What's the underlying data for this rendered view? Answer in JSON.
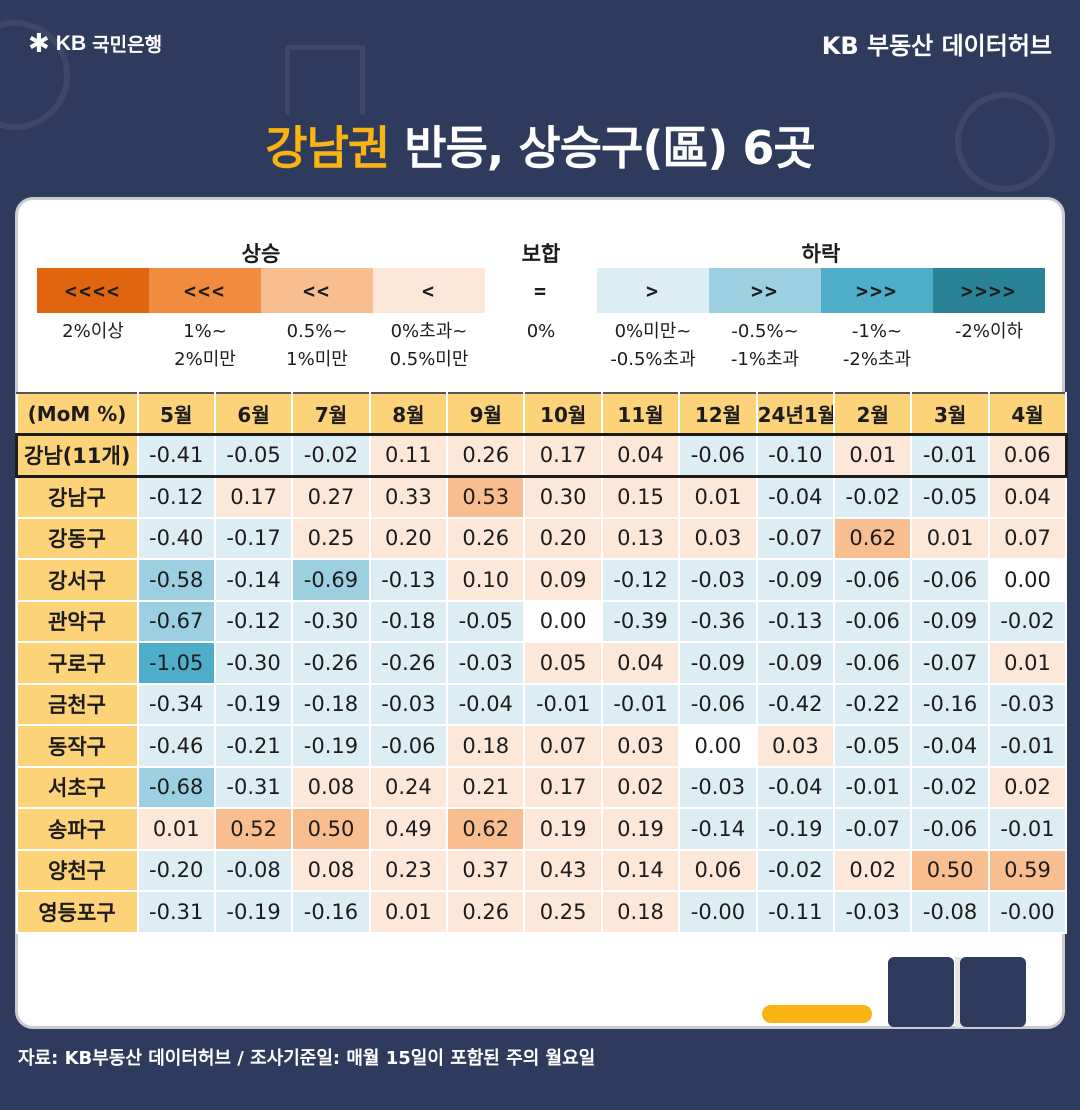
{
  "header": {
    "logo_star": "✱",
    "logo_kb": "KB",
    "logo_text": "국민은행",
    "brand": "KB 부동산 데이터허브"
  },
  "title": {
    "highlight": "강남권",
    "rest": " 반등, 상승구(區) 6곳"
  },
  "legend": {
    "groups": {
      "up": "상승",
      "flat": "보합",
      "down": "하락"
    },
    "items": [
      {
        "symbol": "<<<<",
        "label": [
          "2%이상"
        ],
        "color": "#e1650e"
      },
      {
        "symbol": "<<<",
        "label": [
          "1%~",
          "2%미만"
        ],
        "color": "#f18c3f"
      },
      {
        "symbol": "<<",
        "label": [
          "0.5%~",
          "1%미만"
        ],
        "color": "#f9be8f"
      },
      {
        "symbol": "<",
        "label": [
          "0%초과~",
          "0.5%미만"
        ],
        "color": "#fde7d8"
      },
      {
        "symbol": "=",
        "label": [
          "0%"
        ],
        "color": "#ffffff"
      },
      {
        "symbol": ">",
        "label": [
          "0%미만~",
          "-0.5%초과"
        ],
        "color": "#dcedf3"
      },
      {
        "symbol": ">>",
        "label": [
          "-0.5%~",
          "-1%초과"
        ],
        "color": "#9ccfe0"
      },
      {
        "symbol": ">>>",
        "label": [
          "-1%~",
          "-2%초과"
        ],
        "color": "#4eadc9"
      },
      {
        "symbol": ">>>>",
        "label": [
          "-2%이하"
        ],
        "color": "#2a8296"
      }
    ]
  },
  "table": {
    "corner": "(MoM %)",
    "months": [
      "5월",
      "6월",
      "7월",
      "8월",
      "9월",
      "10월",
      "11월",
      "12월",
      "24년1월",
      "2월",
      "3월",
      "4월"
    ],
    "summary": {
      "name": "강남(11개)",
      "values": [
        "-0.41",
        "-0.05",
        "-0.02",
        "0.11",
        "0.26",
        "0.17",
        "0.04",
        "-0.06",
        "-0.10",
        "0.01",
        "-0.01",
        "0.06"
      ]
    },
    "rows": [
      {
        "name": "강남구",
        "values": [
          "-0.12",
          "0.17",
          "0.27",
          "0.33",
          "0.53",
          "0.30",
          "0.15",
          "0.01",
          "-0.04",
          "-0.02",
          "-0.05",
          "0.04"
        ]
      },
      {
        "name": "강동구",
        "values": [
          "-0.40",
          "-0.17",
          "0.25",
          "0.20",
          "0.26",
          "0.20",
          "0.13",
          "0.03",
          "-0.07",
          "0.62",
          "0.01",
          "0.07"
        ]
      },
      {
        "name": "강서구",
        "values": [
          "-0.58",
          "-0.14",
          "-0.69",
          "-0.13",
          "0.10",
          "0.09",
          "-0.12",
          "-0.03",
          "-0.09",
          "-0.06",
          "-0.06",
          "0.00"
        ]
      },
      {
        "name": "관악구",
        "values": [
          "-0.67",
          "-0.12",
          "-0.30",
          "-0.18",
          "-0.05",
          "0.00",
          "-0.39",
          "-0.36",
          "-0.13",
          "-0.06",
          "-0.09",
          "-0.02"
        ]
      },
      {
        "name": "구로구",
        "values": [
          "-1.05",
          "-0.30",
          "-0.26",
          "-0.26",
          "-0.03",
          "0.05",
          "0.04",
          "-0.09",
          "-0.09",
          "-0.06",
          "-0.07",
          "0.01"
        ]
      },
      {
        "name": "금천구",
        "values": [
          "-0.34",
          "-0.19",
          "-0.18",
          "-0.03",
          "-0.04",
          "-0.01",
          "-0.01",
          "-0.06",
          "-0.42",
          "-0.22",
          "-0.16",
          "-0.03"
        ]
      },
      {
        "name": "동작구",
        "values": [
          "-0.46",
          "-0.21",
          "-0.19",
          "-0.06",
          "0.18",
          "0.07",
          "0.03",
          "0.00",
          "0.03",
          "-0.05",
          "-0.04",
          "-0.01"
        ]
      },
      {
        "name": "서초구",
        "values": [
          "-0.68",
          "-0.31",
          "0.08",
          "0.24",
          "0.21",
          "0.17",
          "0.02",
          "-0.03",
          "-0.04",
          "-0.01",
          "-0.02",
          "0.02"
        ]
      },
      {
        "name": "송파구",
        "values": [
          "0.01",
          "0.52",
          "0.50",
          "0.49",
          "0.62",
          "0.19",
          "0.19",
          "-0.14",
          "-0.19",
          "-0.07",
          "-0.06",
          "-0.01"
        ]
      },
      {
        "name": "양천구",
        "values": [
          "-0.20",
          "-0.08",
          "0.08",
          "0.23",
          "0.37",
          "0.43",
          "0.14",
          "0.06",
          "-0.02",
          "0.02",
          "0.50",
          "0.59"
        ]
      },
      {
        "name": "영등포구",
        "values": [
          "-0.31",
          "-0.19",
          "-0.16",
          "0.01",
          "0.26",
          "0.25",
          "0.18",
          "-0.00",
          "-0.11",
          "-0.03",
          "-0.08",
          "-0.00"
        ]
      }
    ]
  },
  "footer": "자료: KB부동산 데이터허브 / 조사기준일: 매월 15일이 포함된 주의 월요일"
}
